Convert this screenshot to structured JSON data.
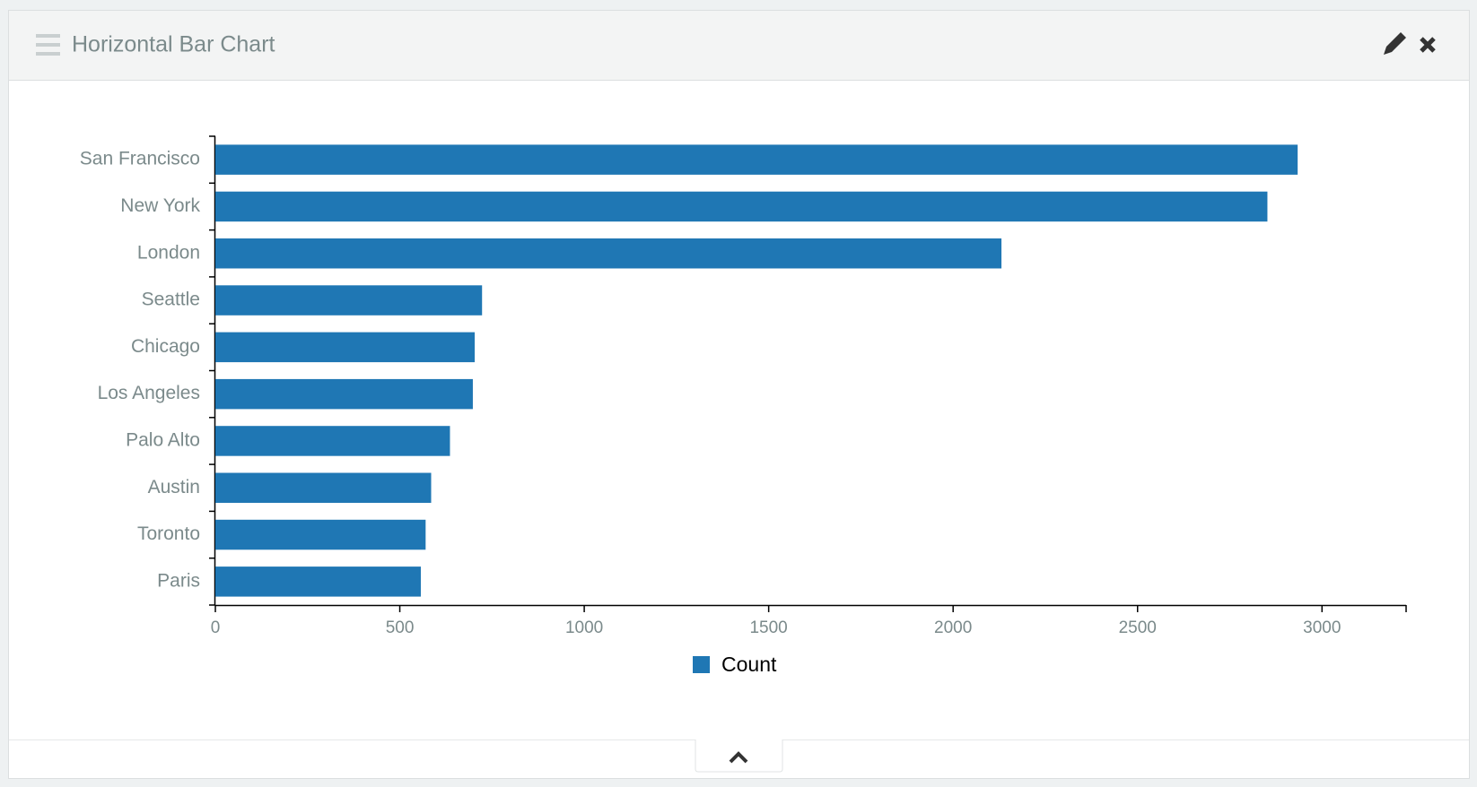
{
  "chart_data": {
    "type": "bar",
    "orientation": "horizontal",
    "title": "Horizontal Bar Chart",
    "categories": [
      "San Francisco",
      "New York",
      "London",
      "Seattle",
      "Chicago",
      "Los Angeles",
      "Palo Alto",
      "Austin",
      "Toronto",
      "Paris"
    ],
    "series": [
      {
        "name": "Count",
        "color": "#1f77b4",
        "values": [
          2934,
          2852,
          2131,
          723,
          703,
          698,
          636,
          585,
          570,
          557
        ]
      }
    ],
    "xlim": [
      0,
      3228
    ],
    "xticks": [
      0,
      500,
      1000,
      1500,
      2000,
      2500,
      3000
    ],
    "grid": false
  }
}
